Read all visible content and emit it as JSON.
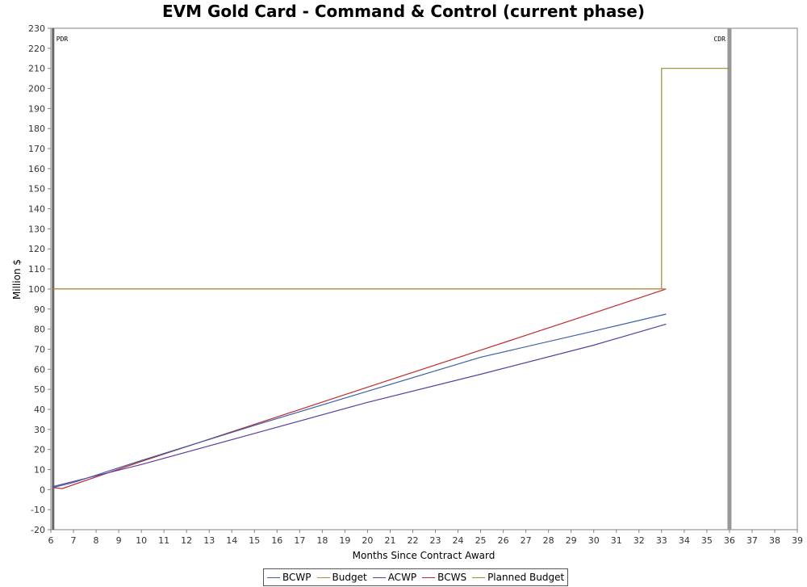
{
  "chart_data": {
    "type": "line",
    "title": "EVM Gold Card - Command & Control (current phase)",
    "xlabel": "Months Since Contract Award",
    "ylabel": "Million $",
    "xlim": [
      6,
      39
    ],
    "ylim": [
      -20,
      230
    ],
    "x_ticks": [
      6,
      7,
      8,
      9,
      10,
      11,
      12,
      13,
      14,
      15,
      16,
      17,
      18,
      19,
      20,
      21,
      22,
      23,
      24,
      25,
      26,
      27,
      28,
      29,
      30,
      31,
      32,
      33,
      34,
      35,
      36,
      37,
      38,
      39
    ],
    "y_ticks": [
      -20,
      -10,
      0,
      10,
      20,
      30,
      40,
      50,
      60,
      70,
      80,
      90,
      100,
      110,
      120,
      130,
      140,
      150,
      160,
      170,
      180,
      190,
      200,
      210,
      220,
      230
    ],
    "grid": false,
    "legend_position": "bottom",
    "milestones": [
      {
        "label": "PDR",
        "x": 6.1,
        "color": "#666666"
      },
      {
        "label": "CDR",
        "x": 36,
        "color": "#999999"
      }
    ],
    "series": [
      {
        "name": "BCWP",
        "color": "#3b5fa8",
        "points": [
          [
            6.1,
            1
          ],
          [
            7,
            3.5
          ],
          [
            10,
            14.5
          ],
          [
            15,
            32
          ],
          [
            20,
            49
          ],
          [
            25,
            66
          ],
          [
            30,
            79
          ],
          [
            33.2,
            87.5
          ]
        ]
      },
      {
        "name": "Budget",
        "color": "#b08a3c",
        "points": [
          [
            6.1,
            100
          ],
          [
            33.2,
            100
          ]
        ]
      },
      {
        "name": "ACWP",
        "color": "#5a3ea0",
        "points": [
          [
            6.1,
            1.5
          ],
          [
            10,
            12.5
          ],
          [
            15,
            28
          ],
          [
            20,
            43.5
          ],
          [
            25,
            57.5
          ],
          [
            30,
            72
          ],
          [
            33.2,
            82.5
          ]
        ]
      },
      {
        "name": "BCWS",
        "color": "#c0282d",
        "points": [
          [
            6.1,
            1
          ],
          [
            6.5,
            0.5
          ],
          [
            10,
            14
          ],
          [
            15,
            32.5
          ],
          [
            20,
            51
          ],
          [
            25,
            69.5
          ],
          [
            30,
            88
          ],
          [
            33.2,
            100
          ]
        ]
      },
      {
        "name": "Planned Budget",
        "color": "#a08a30",
        "points": [
          [
            6.1,
            100
          ],
          [
            33,
            100
          ],
          [
            33,
            210
          ],
          [
            36,
            210
          ]
        ]
      }
    ]
  }
}
